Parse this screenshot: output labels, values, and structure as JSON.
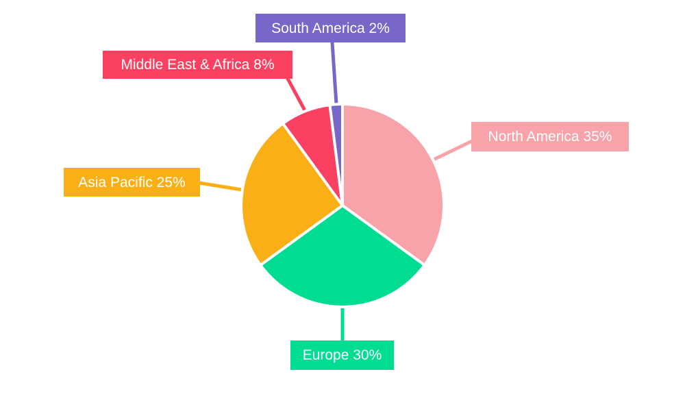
{
  "chart_data": {
    "type": "pie",
    "title": "",
    "legend": "none",
    "background": "#FFFFFF",
    "slice_border_color": "#FFFFFF",
    "label_text_color": "#FFFFFF",
    "start_angle_deg": 0,
    "direction": "clockwise",
    "slices": [
      {
        "id": "north-america",
        "label": "North America",
        "value": 35,
        "display": "North America 35%",
        "color": "#F7A3A9"
      },
      {
        "id": "europe",
        "label": "Europe",
        "value": 30,
        "display": "Europe 30%",
        "color": "#00DC92"
      },
      {
        "id": "asia-pacific",
        "label": "Asia Pacific",
        "value": 25,
        "display": "Asia Pacific 25%",
        "color": "#FBAF17"
      },
      {
        "id": "middle-east-africa",
        "label": "Middle East & Africa",
        "value": 8,
        "display": "Middle East & Africa 8%",
        "color": "#FA4162"
      },
      {
        "id": "south-america",
        "label": "South America",
        "value": 2,
        "display": "South America 2%",
        "color": "#7866C8"
      }
    ]
  }
}
